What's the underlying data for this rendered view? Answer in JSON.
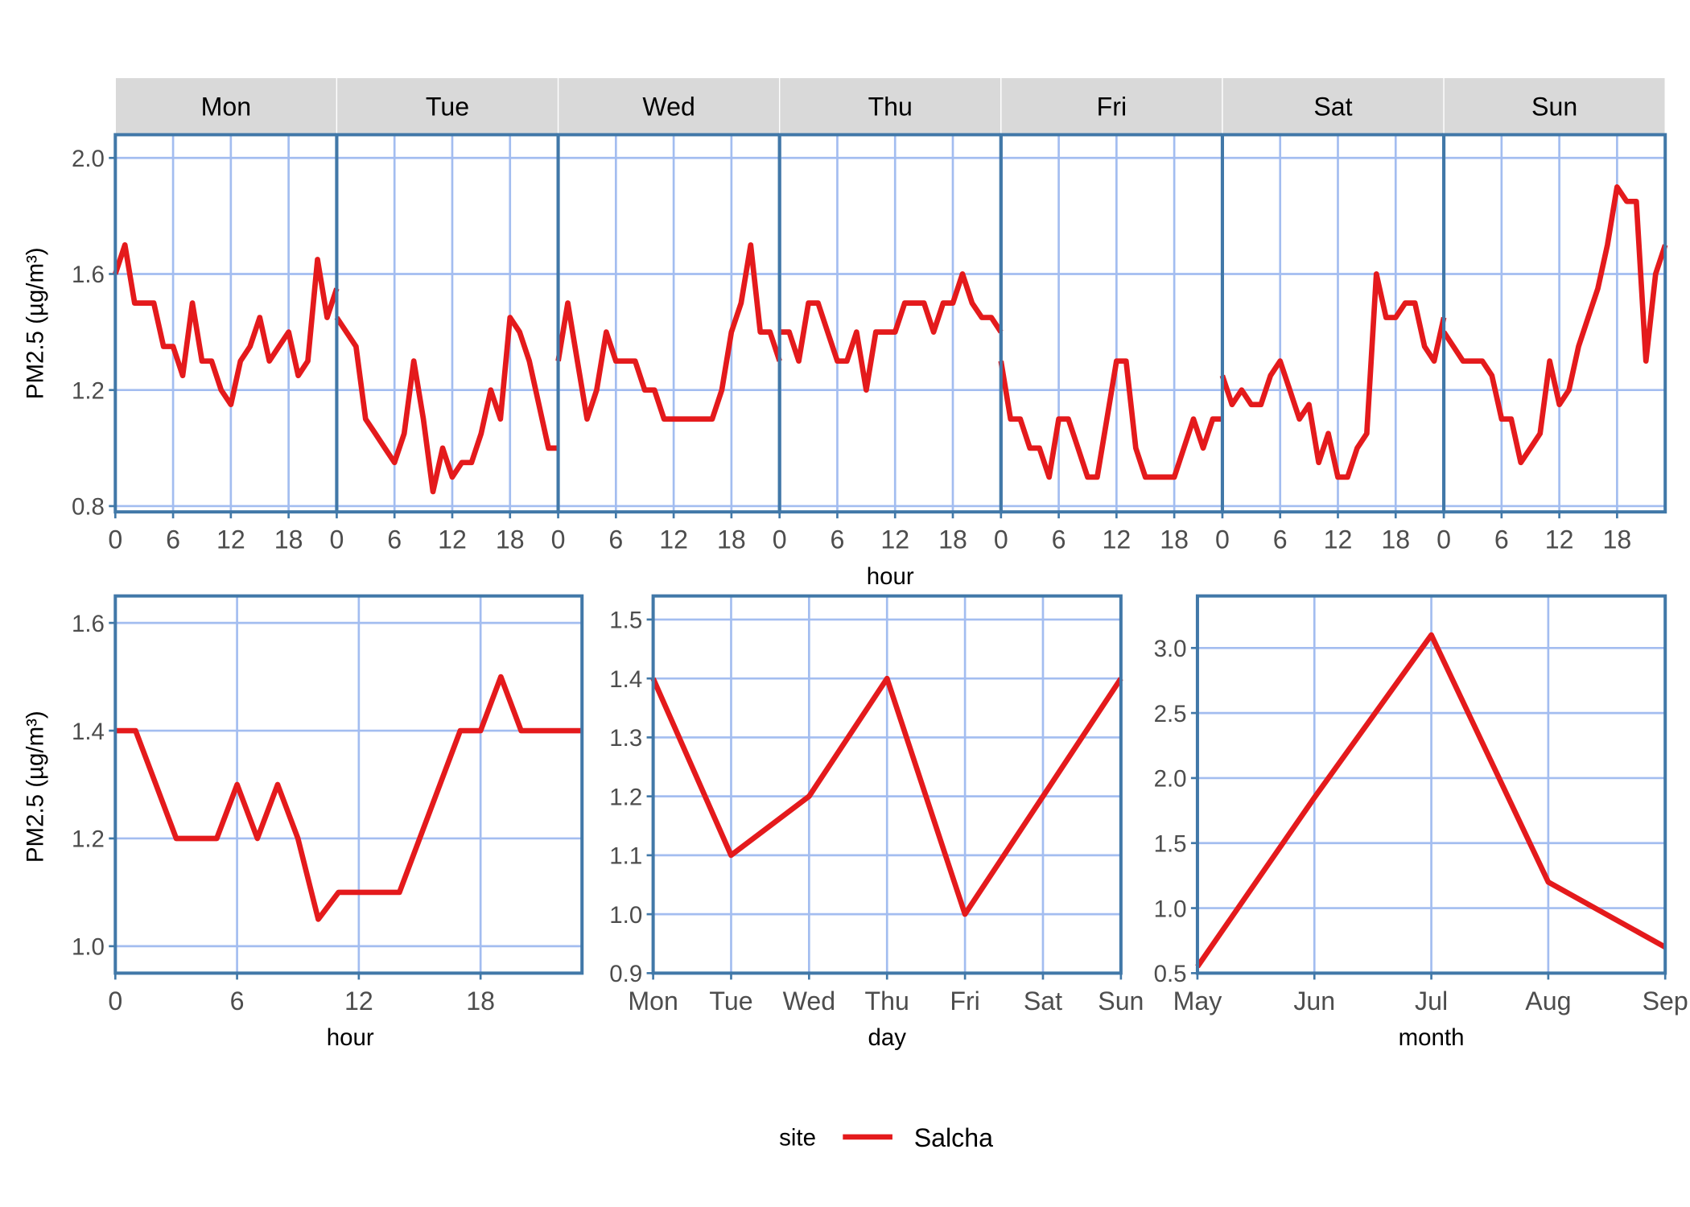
{
  "colors": {
    "line": "#e41a1c",
    "panel_border": "#4178a8",
    "grid": "#a3bdf0",
    "strip": "#d9d9d9"
  },
  "legend": {
    "title": "site",
    "entries": [
      "Salcha"
    ]
  },
  "chart_data": [
    {
      "type": "line",
      "title": "",
      "facets": [
        "Mon",
        "Tue",
        "Wed",
        "Thu",
        "Fri",
        "Sat",
        "Sun"
      ],
      "xlabel": "hour",
      "ylabel": "PM2.5 (µg/m³)",
      "xlim": [
        0,
        23
      ],
      "xticks": [
        0,
        6,
        12,
        18
      ],
      "xtick_labels": [
        "0",
        "6",
        "12",
        "18"
      ],
      "ylim": [
        0.78,
        2.08
      ],
      "yticks": [
        0.8,
        1.2,
        1.6,
        2.0
      ],
      "ytick_labels": [
        "0.8",
        "1.2",
        "1.6",
        "2.0"
      ],
      "grid": true,
      "series": [
        {
          "name": "Salcha",
          "values": [
            [
              1.6,
              1.7,
              1.5,
              1.5,
              1.5,
              1.35,
              1.35,
              1.25,
              1.5,
              1.3,
              1.3,
              1.2,
              1.15,
              1.3,
              1.35,
              1.45,
              1.3,
              1.35,
              1.4,
              1.25,
              1.3,
              1.65,
              1.45,
              1.55
            ],
            [
              1.45,
              1.4,
              1.35,
              1.1,
              1.05,
              1.0,
              0.95,
              1.05,
              1.3,
              1.1,
              0.85,
              1.0,
              0.9,
              0.95,
              0.95,
              1.05,
              1.2,
              1.1,
              1.45,
              1.4,
              1.3,
              1.15,
              1.0,
              1.0
            ],
            [
              1.3,
              1.5,
              1.3,
              1.1,
              1.2,
              1.4,
              1.3,
              1.3,
              1.3,
              1.2,
              1.2,
              1.1,
              1.1,
              1.1,
              1.1,
              1.1,
              1.1,
              1.2,
              1.4,
              1.5,
              1.7,
              1.4,
              1.4,
              1.3
            ],
            [
              1.4,
              1.4,
              1.3,
              1.5,
              1.5,
              1.4,
              1.3,
              1.3,
              1.4,
              1.2,
              1.4,
              1.4,
              1.4,
              1.5,
              1.5,
              1.5,
              1.4,
              1.5,
              1.5,
              1.6,
              1.5,
              1.45,
              1.45,
              1.4
            ],
            [
              1.3,
              1.1,
              1.1,
              1.0,
              1.0,
              0.9,
              1.1,
              1.1,
              1.0,
              0.9,
              0.9,
              1.1,
              1.3,
              1.3,
              1.0,
              0.9,
              0.9,
              0.9,
              0.9,
              1.0,
              1.1,
              1.0,
              1.1,
              1.1
            ],
            [
              1.25,
              1.15,
              1.2,
              1.15,
              1.15,
              1.25,
              1.3,
              1.2,
              1.1,
              1.15,
              0.95,
              1.05,
              0.9,
              0.9,
              1.0,
              1.05,
              1.6,
              1.45,
              1.45,
              1.5,
              1.5,
              1.35,
              1.3,
              1.45
            ],
            [
              1.4,
              1.35,
              1.3,
              1.3,
              1.3,
              1.25,
              1.1,
              1.1,
              0.95,
              1.0,
              1.05,
              1.3,
              1.15,
              1.2,
              1.35,
              1.45,
              1.55,
              1.7,
              1.9,
              1.85,
              1.85,
              1.3,
              1.6,
              1.7
            ]
          ]
        }
      ]
    },
    {
      "type": "line",
      "title": "",
      "xlabel": "hour",
      "ylabel": "PM2.5 (µg/m³)",
      "x": [
        0,
        1,
        2,
        3,
        4,
        5,
        6,
        7,
        8,
        9,
        10,
        11,
        12,
        13,
        14,
        15,
        16,
        17,
        18,
        19,
        20,
        21,
        22,
        23
      ],
      "xlim": [
        0,
        23
      ],
      "xticks": [
        0,
        6,
        12,
        18
      ],
      "xtick_labels": [
        "0",
        "6",
        "12",
        "18"
      ],
      "ylim": [
        0.95,
        1.65
      ],
      "yticks": [
        1.0,
        1.2,
        1.4,
        1.6
      ],
      "ytick_labels": [
        "1.0",
        "1.2",
        "1.4",
        "1.6"
      ],
      "grid": true,
      "series": [
        {
          "name": "Salcha",
          "values": [
            1.4,
            1.4,
            1.3,
            1.2,
            1.2,
            1.2,
            1.3,
            1.2,
            1.3,
            1.2,
            1.05,
            1.1,
            1.1,
            1.1,
            1.1,
            1.2,
            1.3,
            1.4,
            1.4,
            1.5,
            1.4,
            1.4,
            1.4,
            1.4
          ]
        }
      ]
    },
    {
      "type": "line",
      "title": "",
      "xlabel": "day",
      "ylabel": "",
      "categories": [
        "Mon",
        "Tue",
        "Wed",
        "Thu",
        "Fri",
        "Sat",
        "Sun"
      ],
      "ylim": [
        0.9,
        1.54
      ],
      "yticks": [
        0.9,
        1.0,
        1.1,
        1.2,
        1.3,
        1.4,
        1.5
      ],
      "ytick_labels": [
        "0.9",
        "1.0",
        "1.1",
        "1.2",
        "1.3",
        "1.4",
        "1.5"
      ],
      "grid": true,
      "series": [
        {
          "name": "Salcha",
          "values": [
            1.4,
            1.1,
            1.2,
            1.4,
            1.0,
            1.2,
            1.4
          ]
        }
      ]
    },
    {
      "type": "line",
      "title": "",
      "xlabel": "month",
      "ylabel": "",
      "categories": [
        "May",
        "Jun",
        "Jul",
        "Aug",
        "Sep"
      ],
      "ylim": [
        0.5,
        3.4
      ],
      "yticks": [
        0.5,
        1.0,
        1.5,
        2.0,
        2.5,
        3.0
      ],
      "ytick_labels": [
        "0.5",
        "1.0",
        "1.5",
        "2.0",
        "2.5",
        "3.0"
      ],
      "grid": true,
      "series": [
        {
          "name": "Salcha",
          "values": [
            0.55,
            1.85,
            3.1,
            1.2,
            0.7
          ]
        }
      ]
    }
  ]
}
